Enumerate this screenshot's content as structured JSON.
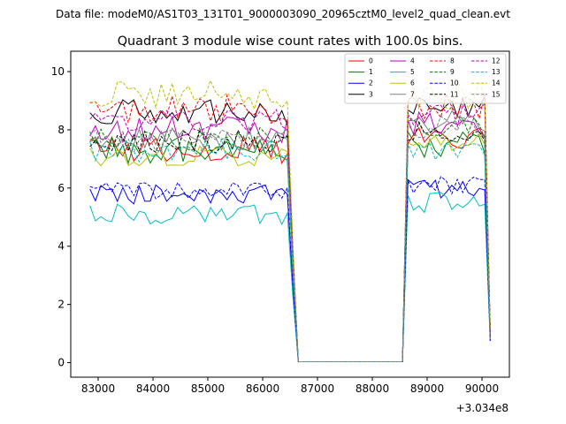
{
  "header": {
    "suptitle": "Data file: modeM0/AS1T03_131T01_9000003090_20965cztM0_level2_quad_clean.evt"
  },
  "chart_data": {
    "type": "line",
    "title": "Quadrant 3 module wise count rates with 100.0s bins.",
    "xlabel": "",
    "ylabel": "",
    "x_offset_label": "+3.034e8",
    "xlim": [
      82500,
      90500
    ],
    "ylim": [
      -0.5,
      10.7
    ],
    "xticks": [
      83000,
      84000,
      85000,
      86000,
      87000,
      88000,
      89000,
      90000
    ],
    "xtick_labels": [
      "83000",
      "84000",
      "85000",
      "86000",
      "87000",
      "88000",
      "89000",
      "90000"
    ],
    "yticks": [
      0,
      2,
      4,
      6,
      8,
      10
    ],
    "ytick_labels": [
      "0",
      "2",
      "4",
      "6",
      "8",
      "10"
    ],
    "grid": false,
    "legend_position": "top-right",
    "segments": [
      {
        "start": 82850,
        "end": 86450,
        "step": 100
      },
      {
        "gap_from": 86450,
        "gap_to": 86550
      },
      {
        "dip": [
          86550,
          86650
        ],
        "flat_from": 86650,
        "flat_to": 88550
      },
      {
        "start": 88650,
        "end": 90050,
        "step": 100
      },
      {
        "end_point": 90150
      }
    ],
    "series": [
      {
        "name": "0",
        "color": "#ff0000",
        "dashed": false,
        "level1": 7.35,
        "level2": 7.6,
        "amp": 0.5
      },
      {
        "name": "1",
        "color": "#008000",
        "dashed": false,
        "level1": 7.3,
        "level2": 7.5,
        "amp": 0.45
      },
      {
        "name": "2",
        "color": "#0000ff",
        "dashed": false,
        "level1": 5.8,
        "level2": 6.0,
        "amp": 0.35
      },
      {
        "name": "3",
        "color": "#000000",
        "dashed": false,
        "level1": 8.6,
        "level2": 8.7,
        "amp": 0.45
      },
      {
        "name": "4",
        "color": "#bf00bf",
        "dashed": false,
        "level1": 8.0,
        "level2": 8.2,
        "amp": 0.45
      },
      {
        "name": "5",
        "color": "#00bfbf",
        "dashed": false,
        "level1": 5.1,
        "level2": 5.5,
        "amp": 0.35
      },
      {
        "name": "6",
        "color": "#bfbf00",
        "dashed": false,
        "level1": 7.1,
        "level2": 7.6,
        "amp": 0.35
      },
      {
        "name": "7",
        "color": "#808080",
        "dashed": false,
        "level1": 7.7,
        "level2": 8.3,
        "amp": 0.4
      },
      {
        "name": "8",
        "color": "#ff0000",
        "dashed": true,
        "level1": 8.7,
        "level2": 8.8,
        "amp": 0.5
      },
      {
        "name": "9",
        "color": "#008000",
        "dashed": true,
        "level1": 7.7,
        "level2": 8.1,
        "amp": 0.4
      },
      {
        "name": "10",
        "color": "#0000ff",
        "dashed": true,
        "level1": 5.9,
        "level2": 6.1,
        "amp": 0.3
      },
      {
        "name": "11",
        "color": "#000000",
        "dashed": true,
        "level1": 7.6,
        "level2": 8.0,
        "amp": 0.4
      },
      {
        "name": "12",
        "color": "#bf00bf",
        "dashed": true,
        "level1": 8.3,
        "level2": 8.5,
        "amp": 0.4
      },
      {
        "name": "13",
        "color": "#00bfbf",
        "dashed": true,
        "level1": 7.3,
        "level2": 7.3,
        "amp": 0.4
      },
      {
        "name": "14",
        "color": "#bfbf00",
        "dashed": true,
        "level1": 9.2,
        "level2": 9.2,
        "amp": 0.5
      },
      {
        "name": "15",
        "color": "#808080",
        "dashed": true,
        "level1": 7.6,
        "level2": 8.1,
        "amp": 0.4
      }
    ]
  }
}
